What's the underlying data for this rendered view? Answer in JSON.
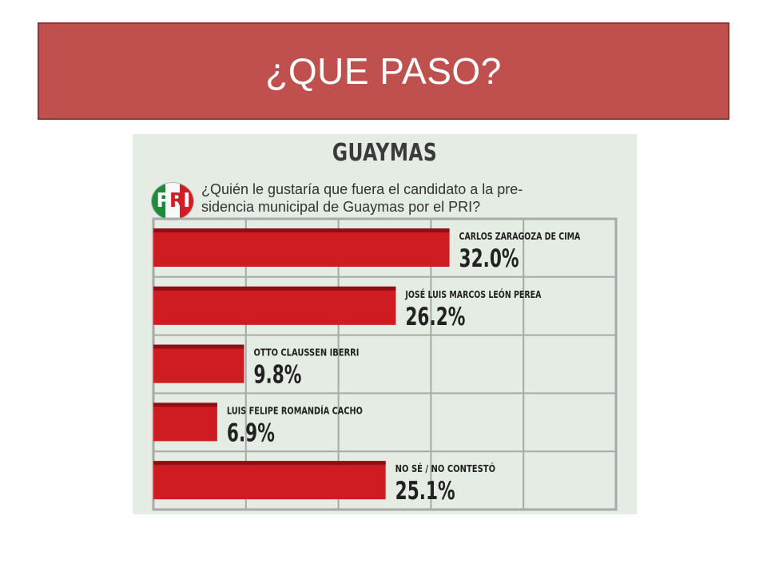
{
  "slide": {
    "title": "¿QUE PASO?"
  },
  "figure": {
    "heading": "GUAYMAS",
    "logo_text": "PRI",
    "question_lines": [
      "¿Quién le gustaría que fuera el candidato a la pre-",
      "sidencia municipal de Guaymas por el PRI?"
    ]
  },
  "colors": {
    "title_bar": "#c0504d",
    "bar": "#cf1b22",
    "bar_top": "#8f0f14",
    "figure_bg": "#e4ece3",
    "grid": "#a9a9a9"
  },
  "chart_data": {
    "type": "bar",
    "orientation": "horizontal",
    "title": "GUAYMAS",
    "xlim": [
      0,
      50
    ],
    "categories": [
      "CARLOS ZARAGOZA DE CIMA",
      "JOSÉ LUIS MARCOS LEÓN PEREA",
      "OTTO CLAUSSEN IBERRI",
      "LUIS FELIPE ROMANDÍA CACHO",
      "NO SÉ / NO CONTESTÓ"
    ],
    "values": [
      32.0,
      26.2,
      9.8,
      6.9,
      25.1
    ],
    "value_labels": [
      "32.0%",
      "26.2%",
      "9.8%",
      "6.9%",
      "25.1%"
    ]
  }
}
